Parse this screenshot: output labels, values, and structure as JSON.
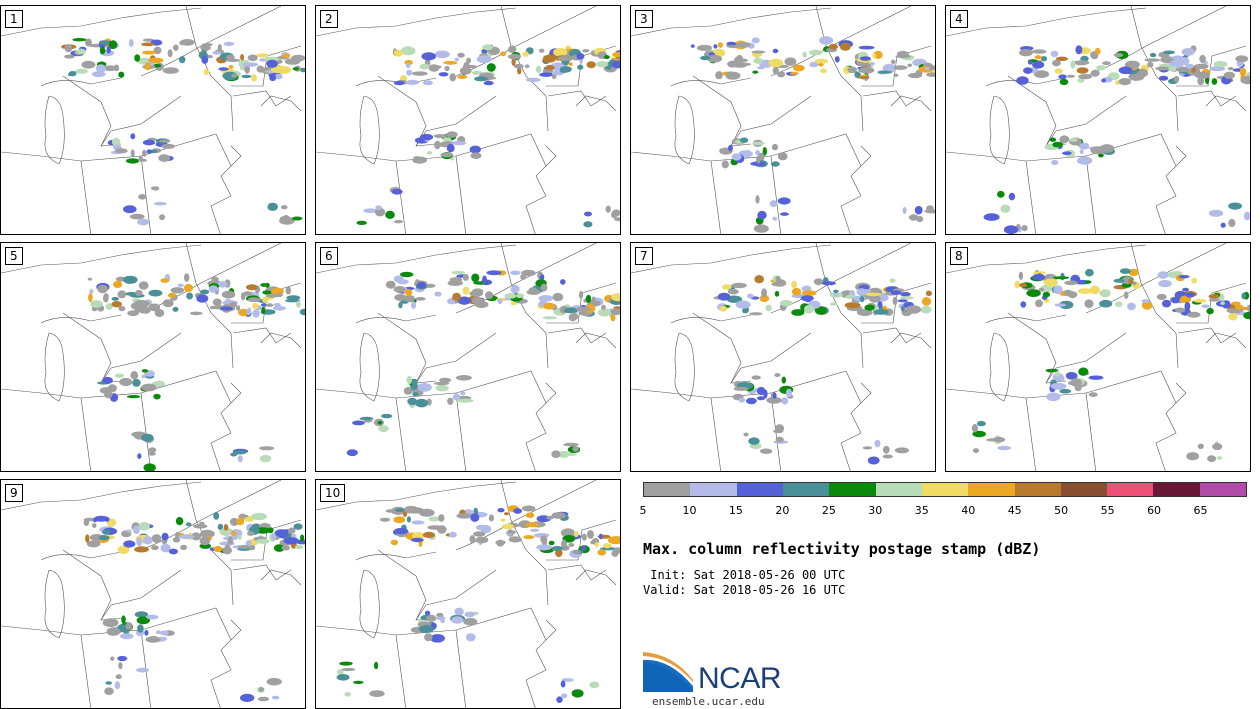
{
  "panels": [
    {
      "label": "1"
    },
    {
      "label": "2"
    },
    {
      "label": "3"
    },
    {
      "label": "4"
    },
    {
      "label": "5"
    },
    {
      "label": "6"
    },
    {
      "label": "7"
    },
    {
      "label": "8"
    },
    {
      "label": "9"
    },
    {
      "label": "10"
    }
  ],
  "legend": {
    "colors": [
      "#a0a0a0",
      "#b3bce8",
      "#5561d8",
      "#4a9098",
      "#0a8a0a",
      "#b8dcb8",
      "#f0dc64",
      "#eca820",
      "#b87a2c",
      "#885030",
      "#ee5078",
      "#6a1838",
      "#b04ca8"
    ],
    "ticks": [
      "5",
      "10",
      "15",
      "20",
      "25",
      "30",
      "35",
      "40",
      "45",
      "50",
      "55",
      "60",
      "65"
    ]
  },
  "title": "Max. column reflectivity postage stamp (dBZ)",
  "init": " Init: Sat 2018-05-26 00 UTC",
  "valid": "Valid: Sat 2018-05-26 16 UTC",
  "logo_text": "NCAR",
  "website": "ensemble.ucar.edu"
}
